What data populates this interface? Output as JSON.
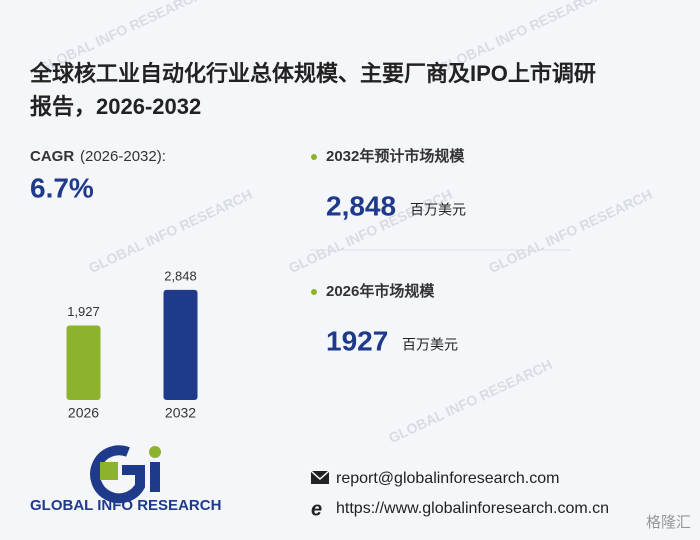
{
  "title_line1": "全球核工业自动化行业总体规模、主要厂商及IPO上市调研",
  "title_line2": "报告，2026-2032",
  "cagr": {
    "label": "CAGR",
    "period": "(2026-2032):",
    "value": "6.7%"
  },
  "stats": [
    {
      "label": "2032年预计市场规模",
      "value": "2,848",
      "unit": "百万美元"
    },
    {
      "label": "2026年市场规模",
      "value": "1927",
      "unit": "百万美元"
    }
  ],
  "logo": {
    "text": "GLOBAL INFO RESEARCH"
  },
  "contact": {
    "email": "report@globalinforesearch.com",
    "website": "https://www.globalinforesearch.com.cn"
  },
  "watermark": "GLOBAL INFO RESEARCH",
  "source_mark": "格隆汇",
  "chart_data": {
    "type": "bar",
    "categories": [
      "2026",
      "2032"
    ],
    "values": [
      1927,
      2848
    ],
    "value_labels": [
      "1,927",
      "2,848"
    ],
    "colors": [
      "#8db32d",
      "#1f3a8a"
    ],
    "ylim": [
      0,
      3000
    ]
  }
}
